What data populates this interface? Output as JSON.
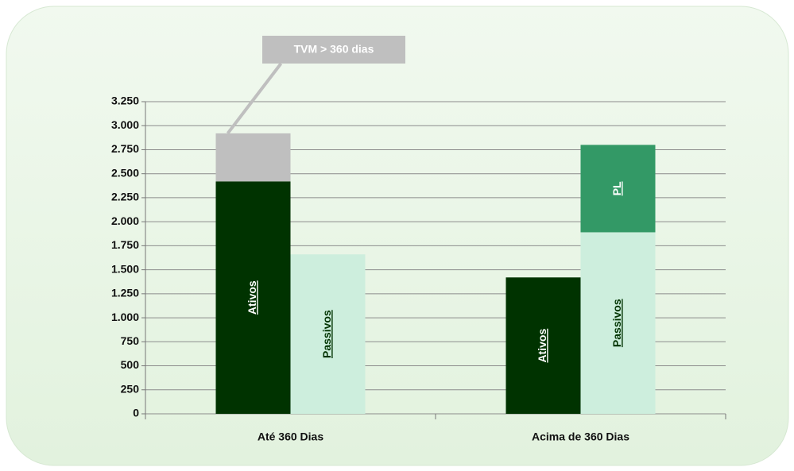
{
  "chart_data": {
    "type": "stacked-bar",
    "categories": [
      "Até 360 Dias",
      "Acima de 360 Dias"
    ],
    "series": [
      {
        "name": "Ativos",
        "color": "#003300",
        "stack": "a",
        "values": [
          2420,
          1420
        ]
      },
      {
        "name": "TVM > 360 dias",
        "color": "#bfbfbf",
        "stack": "a",
        "values": [
          500,
          null
        ]
      },
      {
        "name": "Passivos",
        "color": "#cdeedd",
        "stack": "p",
        "values": [
          1660,
          1890
        ]
      },
      {
        "name": "PL",
        "color": "#339966",
        "stack": "p",
        "values": [
          null,
          910
        ]
      }
    ],
    "ylim": [
      0,
      3250
    ],
    "yticks": [
      0,
      250,
      500,
      750,
      {
        "value": 1000,
        "label": "1.000"
      },
      {
        "value": 1250,
        "label": "1.250"
      },
      {
        "value": 1500,
        "label": "1.500"
      },
      {
        "value": 1750,
        "label": "1.750"
      },
      {
        "value": 2000,
        "label": "2.000"
      },
      {
        "value": 2250,
        "label": "2.250"
      },
      {
        "value": 2500,
        "label": "2.500"
      },
      {
        "value": 2750,
        "label": "2.750"
      },
      {
        "value": 3000,
        "label": "3.000"
      },
      {
        "value": 3250,
        "label": "3.250"
      }
    ],
    "grid": true
  }
}
